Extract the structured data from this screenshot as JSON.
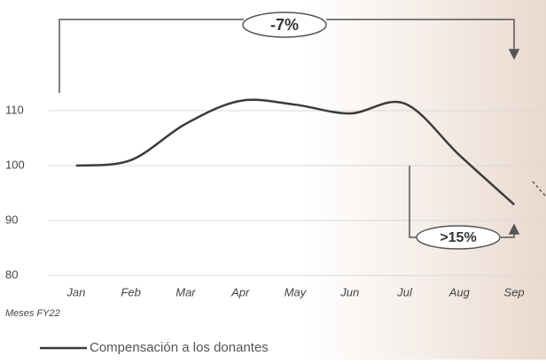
{
  "chart_data": {
    "type": "line",
    "categories": [
      "Jan",
      "Feb",
      "Mar",
      "Apr",
      "May",
      "Jun",
      "Jul",
      "Aug",
      "Sep"
    ],
    "series": [
      {
        "name": "Compensación a los donantes",
        "color": "#3b3b3b",
        "values": [
          100,
          101,
          107.6,
          111.8,
          111.1,
          109.5,
          111.3,
          101.9,
          92.9
        ]
      }
    ],
    "ylim": [
      80,
      125
    ],
    "yticks": [
      80,
      90,
      100,
      110
    ],
    "grid": true,
    "x_label": "Meses FY22",
    "annotations": [
      "-7%",
      ">15%"
    ],
    "legend": "bottom-left"
  }
}
